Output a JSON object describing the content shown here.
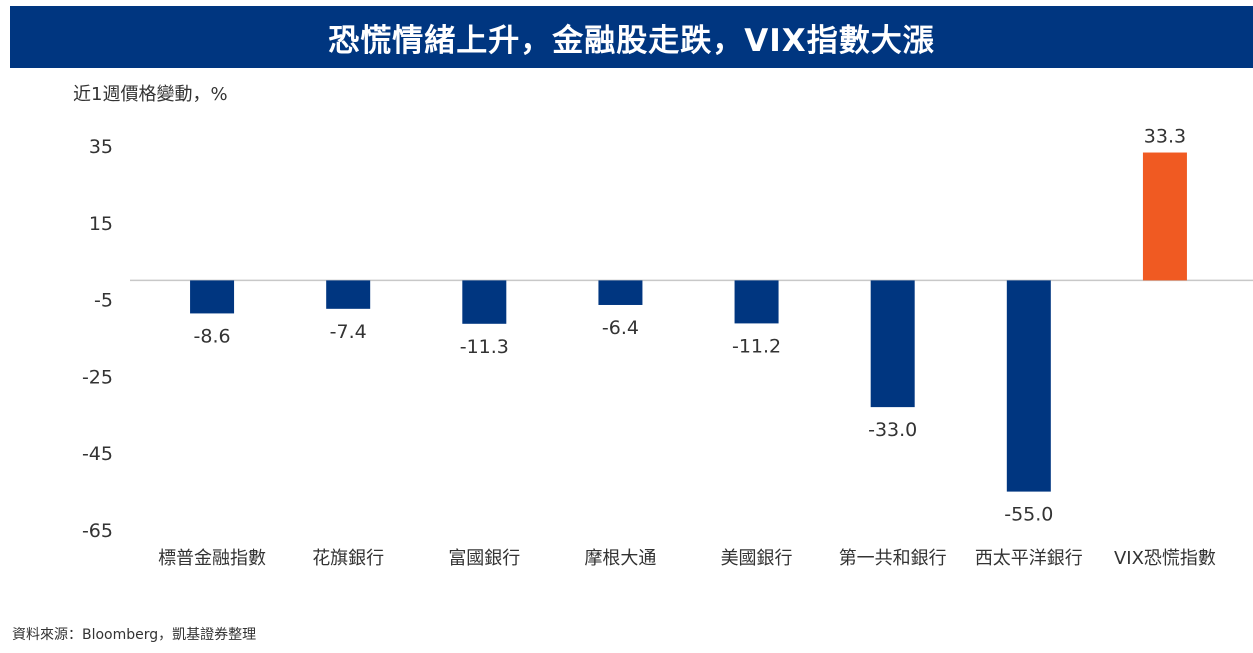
{
  "header": {
    "title": "恐慌情緒上升，金融股走跌，VIX指數大漲"
  },
  "chart_data": {
    "type": "bar",
    "ylabel": "近1週價格變動，%",
    "yticks": [
      35,
      15,
      -5,
      -25,
      -45,
      -65
    ],
    "ylim": [
      -65,
      35
    ],
    "grid": false,
    "legend": "none",
    "categories": [
      "標普金融指數",
      "花旗銀行",
      "富國銀行",
      "摩根大通",
      "美國銀行",
      "第一共和銀行",
      "西太平洋銀行",
      "VIX恐慌指數"
    ],
    "values": [
      -8.6,
      -7.4,
      -11.3,
      -6.4,
      -11.2,
      -33.0,
      -55.0,
      33.3
    ],
    "value_labels": [
      "-8.6",
      "-7.4",
      "-11.3",
      "-6.4",
      "-11.2",
      "-33.0",
      "-55.0",
      "33.3"
    ],
    "colors": {
      "negative": "#003680",
      "positive": "#f05a22"
    }
  },
  "footer": {
    "source": "資料來源：Bloomberg，凱基證券整理"
  }
}
